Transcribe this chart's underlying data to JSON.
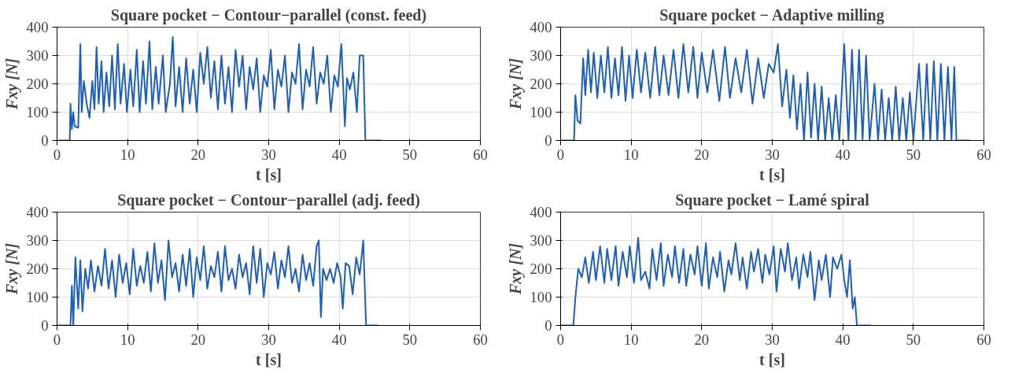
{
  "chart_data": [
    {
      "type": "line",
      "title": "Square pocket − Contour−parallel (const. feed)",
      "xlabel": "t [s]",
      "ylabel": "Fxy [N]",
      "xlim": [
        0,
        60
      ],
      "ylim": [
        0,
        400
      ],
      "xticks": [
        0,
        10,
        20,
        30,
        40,
        50,
        60
      ],
      "yticks": [
        0,
        100,
        200,
        300,
        400
      ],
      "grid": true,
      "line_style": "solid",
      "series": [
        {
          "color": "#1f5fb4",
          "x": [
            0,
            1.8,
            1.9,
            2.1,
            2.3,
            2.5,
            3.0,
            3.3,
            3.5,
            3.8,
            4.2,
            4.6,
            5.0,
            5.3,
            5.6,
            5.9,
            6.3,
            6.6,
            7.0,
            7.4,
            7.8,
            8.2,
            8.6,
            9.0,
            9.5,
            9.9,
            10.4,
            10.8,
            11.3,
            11.7,
            12.2,
            12.6,
            13.1,
            13.5,
            14.0,
            14.4,
            15.0,
            15.4,
            16.0,
            16.4,
            16.8,
            17.3,
            17.8,
            18.3,
            18.8,
            19.3,
            19.8,
            20.3,
            20.8,
            21.3,
            21.8,
            22.3,
            22.8,
            23.3,
            23.8,
            24.3,
            24.8,
            25.3,
            25.8,
            26.3,
            26.8,
            27.3,
            27.8,
            28.3,
            28.8,
            29.3,
            29.8,
            30.3,
            30.8,
            31.3,
            31.8,
            32.3,
            32.8,
            33.3,
            33.8,
            34.3,
            34.8,
            35.3,
            35.8,
            36.3,
            36.8,
            37.3,
            37.8,
            38.3,
            38.8,
            39.3,
            39.8,
            40.3,
            40.8,
            41.1,
            41.5,
            42.0,
            42.5,
            42.9,
            43.4,
            43.7,
            46
          ],
          "values": [
            0,
            0,
            130,
            40,
            100,
            50,
            45,
            340,
            100,
            210,
            130,
            80,
            210,
            110,
            330,
            130,
            280,
            100,
            240,
            120,
            300,
            110,
            340,
            130,
            270,
            100,
            250,
            120,
            320,
            100,
            280,
            130,
            350,
            110,
            260,
            130,
            300,
            100,
            200,
            365,
            120,
            260,
            100,
            290,
            130,
            250,
            100,
            310,
            200,
            330,
            150,
            280,
            110,
            300,
            130,
            260,
            100,
            320,
            190,
            300,
            110,
            260,
            180,
            290,
            100,
            230,
            190,
            320,
            110,
            250,
            190,
            300,
            100,
            240,
            200,
            340,
            110,
            250,
            190,
            330,
            130,
            240,
            200,
            300,
            100,
            230,
            190,
            340,
            50,
            220,
            180,
            240,
            100,
            300,
            300,
            0,
            0
          ]
        }
      ]
    },
    {
      "type": "line",
      "title": "Square pocket − Adaptive milling",
      "xlabel": "t [s]",
      "ylabel": "Fxy [N]",
      "xlim": [
        0,
        60
      ],
      "ylim": [
        0,
        400
      ],
      "xticks": [
        0,
        10,
        20,
        30,
        40,
        50,
        60
      ],
      "yticks": [
        0,
        100,
        200,
        300,
        400
      ],
      "grid": true,
      "line_style": "solid",
      "series": [
        {
          "color": "#1f5fb4",
          "x": [
            0,
            1.9,
            2.1,
            2.4,
            2.8,
            3.2,
            3.5,
            3.9,
            4.3,
            4.7,
            5.2,
            5.7,
            6.2,
            6.7,
            7.2,
            7.7,
            8.2,
            8.7,
            9.2,
            9.7,
            10.2,
            10.8,
            11.4,
            12.0,
            12.7,
            13.4,
            14.0,
            14.6,
            15.3,
            16.0,
            16.7,
            17.4,
            18.1,
            18.8,
            19.4,
            20.0,
            20.8,
            21.6,
            22.5,
            23.3,
            24.0,
            24.8,
            25.6,
            26.4,
            27.2,
            28.0,
            28.8,
            29.5,
            30.2,
            30.8,
            31.4,
            32.0,
            32.5,
            33.0,
            33.5,
            34.0,
            34.5,
            35.0,
            35.5,
            36.0,
            36.5,
            37.0,
            37.5,
            38.0,
            38.5,
            39.0,
            39.5,
            40.2,
            40.8,
            41.3,
            41.8,
            42.3,
            42.8,
            43.3,
            43.8,
            44.5,
            45.0,
            45.5,
            46.0,
            46.5,
            47.0,
            47.5,
            48.0,
            48.5,
            49.0,
            49.5,
            50.0,
            50.8,
            51.4,
            51.9,
            52.4,
            52.9,
            53.4,
            53.9,
            54.4,
            54.9,
            55.4,
            55.8,
            56.1,
            58
          ],
          "values": [
            0,
            0,
            160,
            70,
            60,
            290,
            160,
            320,
            170,
            310,
            150,
            300,
            170,
            330,
            150,
            290,
            160,
            330,
            140,
            300,
            150,
            320,
            170,
            310,
            150,
            330,
            160,
            300,
            160,
            320,
            150,
            340,
            170,
            330,
            150,
            310,
            170,
            320,
            140,
            330,
            150,
            290,
            170,
            320,
            130,
            290,
            150,
            270,
            240,
            340,
            120,
            250,
            80,
            230,
            40,
            200,
            0,
            240,
            10,
            200,
            0,
            190,
            0,
            150,
            0,
            160,
            0,
            340,
            0,
            320,
            0,
            320,
            0,
            300,
            0,
            200,
            0,
            180,
            0,
            150,
            0,
            190,
            0,
            150,
            0,
            170,
            0,
            270,
            0,
            270,
            0,
            280,
            0,
            270,
            0,
            260,
            0,
            260,
            0,
            0
          ]
        }
      ]
    },
    {
      "type": "line",
      "title": "Square pocket − Contour−parallel (adj. feed)",
      "xlabel": "t [s]",
      "ylabel": "Fxy [N]",
      "xlim": [
        0,
        60
      ],
      "ylim": [
        0,
        400
      ],
      "xticks": [
        0,
        10,
        20,
        30,
        40,
        50,
        60
      ],
      "yticks": [
        0,
        100,
        200,
        300,
        400
      ],
      "grid": true,
      "line_style": "solid",
      "series": [
        {
          "color": "#1f5fb4",
          "x": [
            0,
            1.9,
            2.1,
            2.3,
            2.6,
            3.0,
            3.3,
            3.6,
            4.0,
            4.4,
            4.8,
            5.3,
            5.8,
            6.3,
            6.8,
            7.3,
            7.8,
            8.3,
            8.8,
            9.3,
            9.8,
            10.3,
            10.8,
            11.3,
            11.8,
            12.3,
            12.8,
            13.3,
            13.8,
            14.3,
            14.8,
            15.3,
            15.8,
            16.3,
            16.8,
            17.3,
            17.8,
            18.3,
            18.8,
            19.3,
            19.8,
            20.3,
            20.8,
            21.3,
            21.8,
            22.3,
            22.8,
            23.3,
            23.8,
            24.3,
            24.8,
            25.3,
            25.8,
            26.3,
            26.8,
            27.3,
            27.8,
            28.3,
            28.8,
            29.3,
            29.8,
            30.3,
            30.8,
            31.3,
            31.8,
            32.3,
            32.8,
            33.3,
            33.8,
            34.3,
            34.8,
            35.3,
            35.8,
            36.3,
            36.8,
            37.1,
            37.4,
            37.7,
            38.2,
            38.7,
            39.2,
            39.7,
            40.2,
            40.5,
            40.9,
            41.4,
            41.9,
            42.4,
            42.9,
            43.4,
            43.8,
            45.5
          ],
          "values": [
            0,
            0,
            140,
            0,
            240,
            60,
            230,
            50,
            200,
            130,
            230,
            120,
            210,
            140,
            270,
            130,
            230,
            100,
            250,
            150,
            220,
            110,
            270,
            140,
            210,
            150,
            260,
            120,
            290,
            150,
            230,
            90,
            300,
            170,
            220,
            120,
            250,
            140,
            270,
            100,
            240,
            160,
            280,
            130,
            210,
            170,
            260,
            120,
            280,
            160,
            200,
            130,
            250,
            170,
            220,
            110,
            280,
            150,
            270,
            100,
            220,
            180,
            260,
            130,
            230,
            170,
            280,
            150,
            200,
            120,
            250,
            160,
            220,
            140,
            280,
            300,
            30,
            200,
            160,
            200,
            150,
            220,
            170,
            60,
            220,
            210,
            110,
            240,
            180,
            300,
            0,
            0
          ]
        }
      ]
    },
    {
      "type": "line",
      "title": "Square pocket − Lamé spiral",
      "xlabel": "t [s]",
      "ylabel": "Fxy [N]",
      "xlim": [
        0,
        60
      ],
      "ylim": [
        0,
        400
      ],
      "xticks": [
        0,
        10,
        20,
        30,
        40,
        50,
        60
      ],
      "yticks": [
        0,
        100,
        200,
        300,
        400
      ],
      "grid": true,
      "line_style": "solid",
      "series": [
        {
          "color": "#1f5fb4",
          "x": [
            0,
            1.8,
            2.1,
            2.5,
            3.0,
            3.5,
            4.0,
            4.6,
            5.0,
            5.6,
            6.2,
            6.6,
            7.2,
            7.8,
            8.2,
            8.8,
            9.4,
            9.8,
            10.4,
            11.0,
            11.4,
            12.0,
            12.6,
            13.0,
            13.6,
            14.2,
            14.6,
            15.2,
            15.8,
            16.2,
            16.8,
            17.4,
            17.8,
            18.4,
            19.0,
            19.4,
            20.0,
            20.6,
            21.0,
            21.6,
            22.2,
            22.6,
            23.2,
            23.8,
            24.2,
            24.8,
            25.4,
            25.8,
            26.4,
            27.0,
            27.4,
            28.0,
            28.6,
            29.0,
            29.6,
            30.2,
            30.6,
            31.2,
            31.8,
            32.2,
            32.8,
            33.4,
            33.8,
            34.4,
            35.0,
            35.4,
            36.0,
            36.6,
            37.0,
            37.6,
            38.2,
            38.6,
            39.2,
            39.8,
            40.2,
            40.6,
            41.0,
            41.4,
            41.7,
            42.0,
            44
          ],
          "values": [
            0,
            0,
            100,
            200,
            170,
            240,
            150,
            260,
            160,
            280,
            150,
            270,
            160,
            280,
            140,
            260,
            170,
            280,
            150,
            310,
            160,
            190,
            130,
            270,
            160,
            290,
            140,
            250,
            170,
            280,
            150,
            270,
            140,
            250,
            180,
            280,
            140,
            290,
            130,
            240,
            170,
            260,
            120,
            230,
            180,
            290,
            160,
            240,
            130,
            260,
            190,
            270,
            150,
            250,
            180,
            280,
            120,
            270,
            190,
            290,
            160,
            240,
            130,
            250,
            170,
            260,
            90,
            230,
            160,
            250,
            100,
            240,
            200,
            250,
            160,
            100,
            230,
            60,
            100,
            0,
            0
          ]
        }
      ]
    }
  ]
}
